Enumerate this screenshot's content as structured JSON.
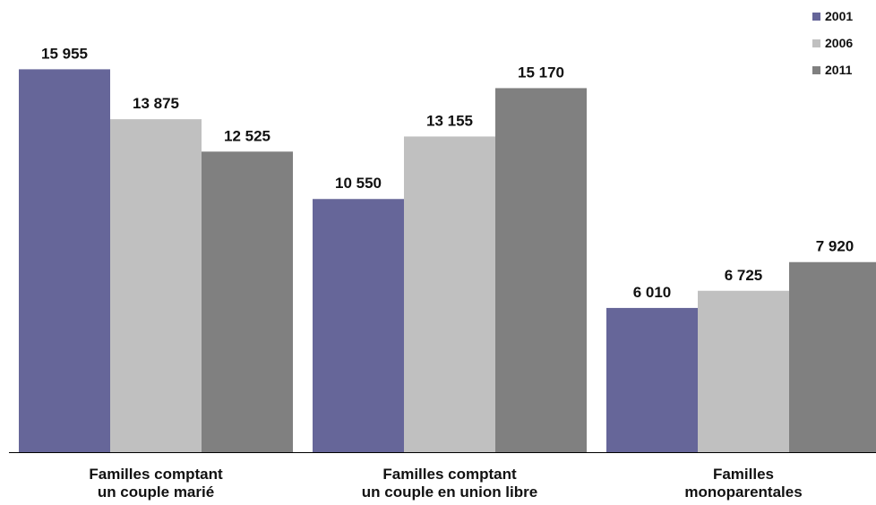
{
  "chart_data": {
    "type": "bar",
    "categories": [
      [
        "Familles comptant",
        "un couple marié"
      ],
      [
        "Familles comptant",
        "un couple en union libre"
      ],
      [
        "Familles",
        "monoparentales"
      ]
    ],
    "series": [
      {
        "name": "2001",
        "values": [
          15955,
          10550,
          6010
        ],
        "labels": [
          "15 955",
          "10 550",
          "6 010"
        ],
        "color": "#666699"
      },
      {
        "name": "2006",
        "values": [
          13875,
          13155,
          6725
        ],
        "labels": [
          "13 875",
          "13 155",
          "6 725"
        ],
        "color": "#c0c0c0"
      },
      {
        "name": "2011",
        "values": [
          12525,
          15170,
          7920
        ],
        "labels": [
          "12 525",
          "15 170",
          "7 920"
        ],
        "color": "#808080"
      }
    ],
    "ylim": [
      0,
      17350
    ],
    "grid": false,
    "legend_position": "top-right",
    "title": "",
    "xlabel": "",
    "ylabel": ""
  }
}
